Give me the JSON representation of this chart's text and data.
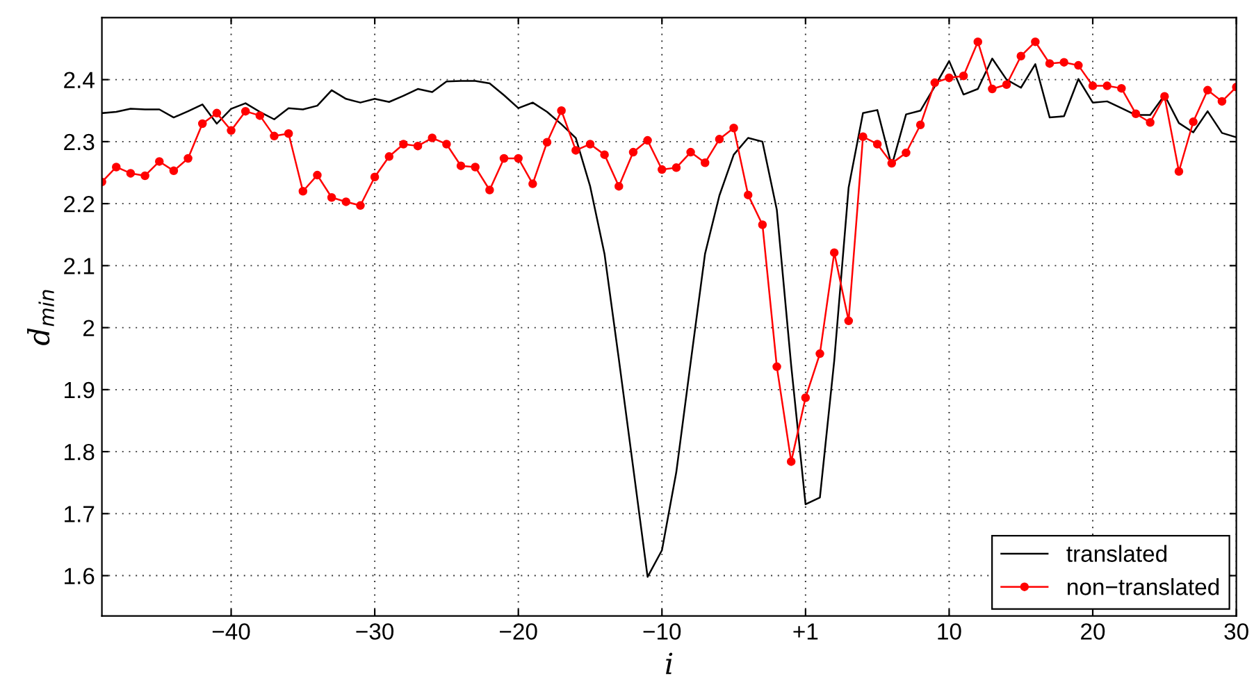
{
  "chart_data": {
    "type": "line",
    "xlabel": "i",
    "ylabel": "d$_{min}$",
    "categories": [
      null,
      null,
      null,
      null,
      null,
      null,
      null,
      null,
      null,
      "−40",
      null,
      null,
      null,
      null,
      null,
      null,
      null,
      null,
      null,
      "−30",
      null,
      null,
      null,
      null,
      null,
      null,
      null,
      null,
      null,
      "−20",
      null,
      null,
      null,
      null,
      null,
      null,
      null,
      null,
      null,
      "−10",
      null,
      null,
      null,
      null,
      null,
      null,
      null,
      null,
      null,
      "+1",
      null,
      null,
      null,
      null,
      null,
      null,
      null,
      null,
      null,
      "10",
      null,
      null,
      null,
      null,
      null,
      null,
      null,
      null,
      null,
      "20",
      null,
      null,
      null,
      null,
      null,
      null,
      null,
      null,
      null,
      "30"
    ],
    "series": [
      {
        "name": "translated",
        "color": "#000000",
        "marker": "none",
        "values": [
          2.346,
          2.348,
          2.353,
          2.352,
          2.352,
          2.339,
          2.349,
          2.36,
          2.329,
          2.353,
          2.362,
          2.348,
          2.336,
          2.354,
          2.352,
          2.358,
          2.383,
          2.369,
          2.363,
          2.369,
          2.364,
          2.374,
          2.385,
          2.38,
          2.397,
          2.398,
          2.398,
          2.394,
          2.375,
          2.354,
          2.363,
          2.348,
          2.328,
          2.306,
          2.228,
          2.119,
          1.949,
          1.774,
          1.598,
          1.641,
          1.767,
          1.944,
          2.119,
          2.213,
          2.279,
          2.306,
          2.3,
          2.19,
          1.939,
          1.715,
          1.726,
          1.947,
          2.226,
          2.346,
          2.351,
          2.261,
          2.344,
          2.35,
          2.389,
          2.43,
          2.376,
          2.385,
          2.434,
          2.4,
          2.387,
          2.425,
          2.339,
          2.341,
          2.401,
          2.363,
          2.365,
          2.354,
          2.343,
          2.343,
          2.375,
          2.33,
          2.315,
          2.349,
          2.314,
          2.307
        ]
      },
      {
        "name": "non−translated",
        "color": "#ff0000",
        "marker": "circle",
        "values": [
          2.235,
          2.259,
          2.249,
          2.245,
          2.268,
          2.253,
          2.273,
          2.329,
          2.346,
          2.318,
          2.349,
          2.342,
          2.309,
          2.313,
          2.22,
          2.246,
          2.21,
          2.203,
          2.197,
          2.243,
          2.276,
          2.296,
          2.293,
          2.306,
          2.296,
          2.261,
          2.259,
          2.222,
          2.273,
          2.273,
          2.232,
          2.299,
          2.35,
          2.286,
          2.296,
          2.279,
          2.228,
          2.283,
          2.302,
          2.255,
          2.258,
          2.283,
          2.266,
          2.304,
          2.322,
          2.214,
          2.166,
          1.937,
          1.784,
          1.887,
          1.958,
          2.121,
          2.011,
          2.308,
          2.296,
          2.265,
          2.282,
          2.327,
          2.395,
          2.403,
          2.406,
          2.461,
          2.385,
          2.392,
          2.438,
          2.461,
          2.426,
          2.428,
          2.423,
          2.39,
          2.39,
          2.386,
          2.345,
          2.331,
          2.373,
          2.252,
          2.332,
          2.383,
          2.365,
          2.388
        ]
      }
    ],
    "ylim": [
      1.535,
      2.5
    ],
    "yticks": [
      1.6,
      1.7,
      1.8,
      1.9,
      {
        "value": 2,
        "label": "2"
      },
      2.1,
      2.2,
      2.3,
      2.4
    ],
    "grid": true,
    "line_style": "solid",
    "legend": "bottom right"
  }
}
